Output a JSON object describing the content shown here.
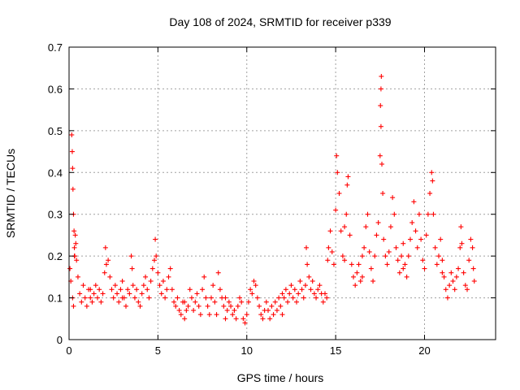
{
  "chart_data": {
    "type": "scatter",
    "title": "Day 108 of 2024, SRMTID for receiver p339",
    "xlabel": "GPS time / hours",
    "ylabel": "SRMTID / TECUs",
    "xlim": [
      0,
      24
    ],
    "ylim": [
      0,
      0.7
    ],
    "x_ticks": [
      0,
      5,
      10,
      15,
      20
    ],
    "x_tick_labels": [
      "0",
      "5",
      "10",
      "15",
      "20"
    ],
    "y_ticks": [
      0,
      0.1,
      0.2,
      0.3,
      0.4,
      0.5,
      0.6,
      0.7
    ],
    "y_tick_labels": [
      "0",
      "0.1",
      "0.2",
      "0.3",
      "0.4",
      "0.5",
      "0.6",
      "0.7"
    ],
    "grid": true,
    "marker": "+",
    "color": "#ff0000",
    "series": [
      {
        "name": "SRMTID",
        "points": [
          [
            0.05,
            0.17
          ],
          [
            0.1,
            0.14
          ],
          [
            0.15,
            0.49
          ],
          [
            0.18,
            0.45
          ],
          [
            0.2,
            0.41
          ],
          [
            0.22,
            0.36
          ],
          [
            0.25,
            0.3
          ],
          [
            0.28,
            0.26
          ],
          [
            0.3,
            0.22
          ],
          [
            0.32,
            0.2
          ],
          [
            0.35,
            0.25
          ],
          [
            0.38,
            0.23
          ],
          [
            0.42,
            0.19
          ],
          [
            0.2,
            0.1
          ],
          [
            0.25,
            0.08
          ],
          [
            0.5,
            0.15
          ],
          [
            0.6,
            0.11
          ],
          [
            0.7,
            0.09
          ],
          [
            0.8,
            0.13
          ],
          [
            0.9,
            0.1
          ],
          [
            1.0,
            0.08
          ],
          [
            1.1,
            0.12
          ],
          [
            1.2,
            0.1
          ],
          [
            1.3,
            0.09
          ],
          [
            1.4,
            0.11
          ],
          [
            1.5,
            0.13
          ],
          [
            1.6,
            0.1
          ],
          [
            1.7,
            0.12
          ],
          [
            1.8,
            0.09
          ],
          [
            1.9,
            0.11
          ],
          [
            2.0,
            0.16
          ],
          [
            2.05,
            0.22
          ],
          [
            2.1,
            0.18
          ],
          [
            2.2,
            0.19
          ],
          [
            2.3,
            0.15
          ],
          [
            2.4,
            0.12
          ],
          [
            2.5,
            0.1
          ],
          [
            2.6,
            0.13
          ],
          [
            2.7,
            0.11
          ],
          [
            2.8,
            0.09
          ],
          [
            2.9,
            0.12
          ],
          [
            3.0,
            0.14
          ],
          [
            3.1,
            0.1
          ],
          [
            3.2,
            0.08
          ],
          [
            3.3,
            0.12
          ],
          [
            3.4,
            0.11
          ],
          [
            3.5,
            0.2
          ],
          [
            3.55,
            0.17
          ],
          [
            3.6,
            0.13
          ],
          [
            3.7,
            0.1
          ],
          [
            3.8,
            0.12
          ],
          [
            3.9,
            0.09
          ],
          [
            4.0,
            0.08
          ],
          [
            4.1,
            0.11
          ],
          [
            4.2,
            0.13
          ],
          [
            4.3,
            0.15
          ],
          [
            4.4,
            0.12
          ],
          [
            4.5,
            0.1
          ],
          [
            4.6,
            0.14
          ],
          [
            4.7,
            0.17
          ],
          [
            4.8,
            0.19
          ],
          [
            4.85,
            0.24
          ],
          [
            4.9,
            0.2
          ],
          [
            5.0,
            0.16
          ],
          [
            5.1,
            0.13
          ],
          [
            5.2,
            0.11
          ],
          [
            5.3,
            0.14
          ],
          [
            5.4,
            0.1
          ],
          [
            5.5,
            0.12
          ],
          [
            5.6,
            0.15
          ],
          [
            5.7,
            0.17
          ],
          [
            5.8,
            0.12
          ],
          [
            5.9,
            0.09
          ],
          [
            6.0,
            0.08
          ],
          [
            6.1,
            0.1
          ],
          [
            6.2,
            0.07
          ],
          [
            6.3,
            0.06
          ],
          [
            6.4,
            0.09
          ],
          [
            6.5,
            0.05
          ],
          [
            6.6,
            0.07
          ],
          [
            6.7,
            0.08
          ],
          [
            6.8,
            0.12
          ],
          [
            6.9,
            0.1
          ],
          [
            7.0,
            0.07
          ],
          [
            7.1,
            0.09
          ],
          [
            7.2,
            0.11
          ],
          [
            7.3,
            0.08
          ],
          [
            7.4,
            0.06
          ],
          [
            7.5,
            0.12
          ],
          [
            7.6,
            0.15
          ],
          [
            7.7,
            0.1
          ],
          [
            7.8,
            0.08
          ],
          [
            7.9,
            0.06
          ],
          [
            8.0,
            0.1
          ],
          [
            8.1,
            0.13
          ],
          [
            8.2,
            0.09
          ],
          [
            8.3,
            0.06
          ],
          [
            8.4,
            0.16
          ],
          [
            8.5,
            0.12
          ],
          [
            8.6,
            0.1
          ],
          [
            8.7,
            0.08
          ],
          [
            8.8,
            0.05
          ],
          [
            8.9,
            0.07
          ],
          [
            9.0,
            0.09
          ],
          [
            9.1,
            0.08
          ],
          [
            9.2,
            0.06
          ],
          [
            9.3,
            0.07
          ],
          [
            9.4,
            0.05
          ],
          [
            9.5,
            0.08
          ],
          [
            9.6,
            0.1
          ],
          [
            9.7,
            0.09
          ],
          [
            9.8,
            0.05
          ],
          [
            9.9,
            0.04
          ],
          [
            10.0,
            0.06
          ],
          [
            10.1,
            0.09
          ],
          [
            10.2,
            0.12
          ],
          [
            10.3,
            0.11
          ],
          [
            10.4,
            0.14
          ],
          [
            10.5,
            0.13
          ],
          [
            10.6,
            0.1
          ],
          [
            10.7,
            0.08
          ],
          [
            10.8,
            0.06
          ],
          [
            10.9,
            0.05
          ],
          [
            11.0,
            0.07
          ],
          [
            11.1,
            0.09
          ],
          [
            11.2,
            0.07
          ],
          [
            11.3,
            0.05
          ],
          [
            11.4,
            0.08
          ],
          [
            11.5,
            0.06
          ],
          [
            11.6,
            0.09
          ],
          [
            11.7,
            0.07
          ],
          [
            11.8,
            0.1
          ],
          [
            11.9,
            0.08
          ],
          [
            12.0,
            0.06
          ],
          [
            12.1,
            0.1
          ],
          [
            12.2,
            0.12
          ],
          [
            12.3,
            0.09
          ],
          [
            12.4,
            0.11
          ],
          [
            12.5,
            0.13
          ],
          [
            12.6,
            0.1
          ],
          [
            12.7,
            0.12
          ],
          [
            12.8,
            0.09
          ],
          [
            12.9,
            0.11
          ],
          [
            13.0,
            0.14
          ],
          [
            13.1,
            0.12
          ],
          [
            13.2,
            0.1
          ],
          [
            13.3,
            0.13
          ],
          [
            13.35,
            0.22
          ],
          [
            13.4,
            0.18
          ],
          [
            13.5,
            0.15
          ],
          [
            13.6,
            0.12
          ],
          [
            13.7,
            0.14
          ],
          [
            13.8,
            0.11
          ],
          [
            13.9,
            0.1
          ],
          [
            14.0,
            0.12
          ],
          [
            14.1,
            0.13
          ],
          [
            14.2,
            0.11
          ],
          [
            14.3,
            0.09
          ],
          [
            14.4,
            0.11
          ],
          [
            14.5,
            0.1
          ],
          [
            14.55,
            0.19
          ],
          [
            14.6,
            0.22
          ],
          [
            14.7,
            0.26
          ],
          [
            14.8,
            0.21
          ],
          [
            14.9,
            0.18
          ],
          [
            15.0,
            0.31
          ],
          [
            15.05,
            0.44
          ],
          [
            15.1,
            0.4
          ],
          [
            15.2,
            0.35
          ],
          [
            15.3,
            0.26
          ],
          [
            15.4,
            0.2
          ],
          [
            15.5,
            0.27
          ],
          [
            15.6,
            0.3
          ],
          [
            15.65,
            0.37
          ],
          [
            15.7,
            0.39
          ],
          [
            15.8,
            0.25
          ],
          [
            15.9,
            0.18
          ],
          [
            16.0,
            0.15
          ],
          [
            16.1,
            0.13
          ],
          [
            16.2,
            0.16
          ],
          [
            16.3,
            0.18
          ],
          [
            16.4,
            0.14
          ],
          [
            16.5,
            0.2
          ],
          [
            16.6,
            0.22
          ],
          [
            16.7,
            0.27
          ],
          [
            16.8,
            0.3
          ],
          [
            16.9,
            0.21
          ],
          [
            17.0,
            0.17
          ],
          [
            17.1,
            0.14
          ],
          [
            17.2,
            0.2
          ],
          [
            17.3,
            0.25
          ],
          [
            17.4,
            0.28
          ],
          [
            17.5,
            0.44
          ],
          [
            17.52,
            0.56
          ],
          [
            17.55,
            0.6
          ],
          [
            17.57,
            0.63
          ],
          [
            17.55,
            0.51
          ],
          [
            17.6,
            0.42
          ],
          [
            17.65,
            0.35
          ],
          [
            17.7,
            0.24
          ],
          [
            17.8,
            0.2
          ],
          [
            17.9,
            0.18
          ],
          [
            18.0,
            0.21
          ],
          [
            18.1,
            0.27
          ],
          [
            18.2,
            0.34
          ],
          [
            18.3,
            0.3
          ],
          [
            18.4,
            0.22
          ],
          [
            18.5,
            0.19
          ],
          [
            18.6,
            0.16
          ],
          [
            18.7,
            0.2
          ],
          [
            18.8,
            0.23
          ],
          [
            18.9,
            0.18
          ],
          [
            19.0,
            0.15
          ],
          [
            19.1,
            0.2
          ],
          [
            19.2,
            0.24
          ],
          [
            19.3,
            0.28
          ],
          [
            19.4,
            0.33
          ],
          [
            19.5,
            0.26
          ],
          [
            19.6,
            0.22
          ],
          [
            19.7,
            0.3
          ],
          [
            19.8,
            0.24
          ],
          [
            19.9,
            0.19
          ],
          [
            20.0,
            0.17
          ],
          [
            20.1,
            0.25
          ],
          [
            20.2,
            0.3
          ],
          [
            20.3,
            0.35
          ],
          [
            20.4,
            0.4
          ],
          [
            20.45,
            0.38
          ],
          [
            20.5,
            0.3
          ],
          [
            20.6,
            0.22
          ],
          [
            20.7,
            0.18
          ],
          [
            20.8,
            0.2
          ],
          [
            20.9,
            0.24
          ],
          [
            21.0,
            0.19
          ],
          [
            21.1,
            0.15
          ],
          [
            21.2,
            0.12
          ],
          [
            21.3,
            0.1
          ],
          [
            21.4,
            0.13
          ],
          [
            21.5,
            0.16
          ],
          [
            21.6,
            0.14
          ],
          [
            21.7,
            0.12
          ],
          [
            21.8,
            0.15
          ],
          [
            21.9,
            0.17
          ],
          [
            22.0,
            0.22
          ],
          [
            22.05,
            0.27
          ],
          [
            22.1,
            0.23
          ],
          [
            22.2,
            0.16
          ],
          [
            22.3,
            0.13
          ],
          [
            22.4,
            0.12
          ],
          [
            22.5,
            0.19
          ],
          [
            22.6,
            0.24
          ],
          [
            22.7,
            0.22
          ],
          [
            22.75,
            0.17
          ],
          [
            22.8,
            0.14
          ],
          [
            0.3,
            0.2
          ],
          [
            1.2,
            0.12
          ],
          [
            3.0,
            0.1
          ],
          [
            6.5,
            0.09
          ],
          [
            8.8,
            0.1
          ],
          [
            12.0,
            0.11
          ],
          [
            16.5,
            0.15
          ],
          [
            18.8,
            0.17
          ],
          [
            21.0,
            0.16
          ],
          [
            15.5,
            0.19
          ]
        ]
      }
    ]
  }
}
